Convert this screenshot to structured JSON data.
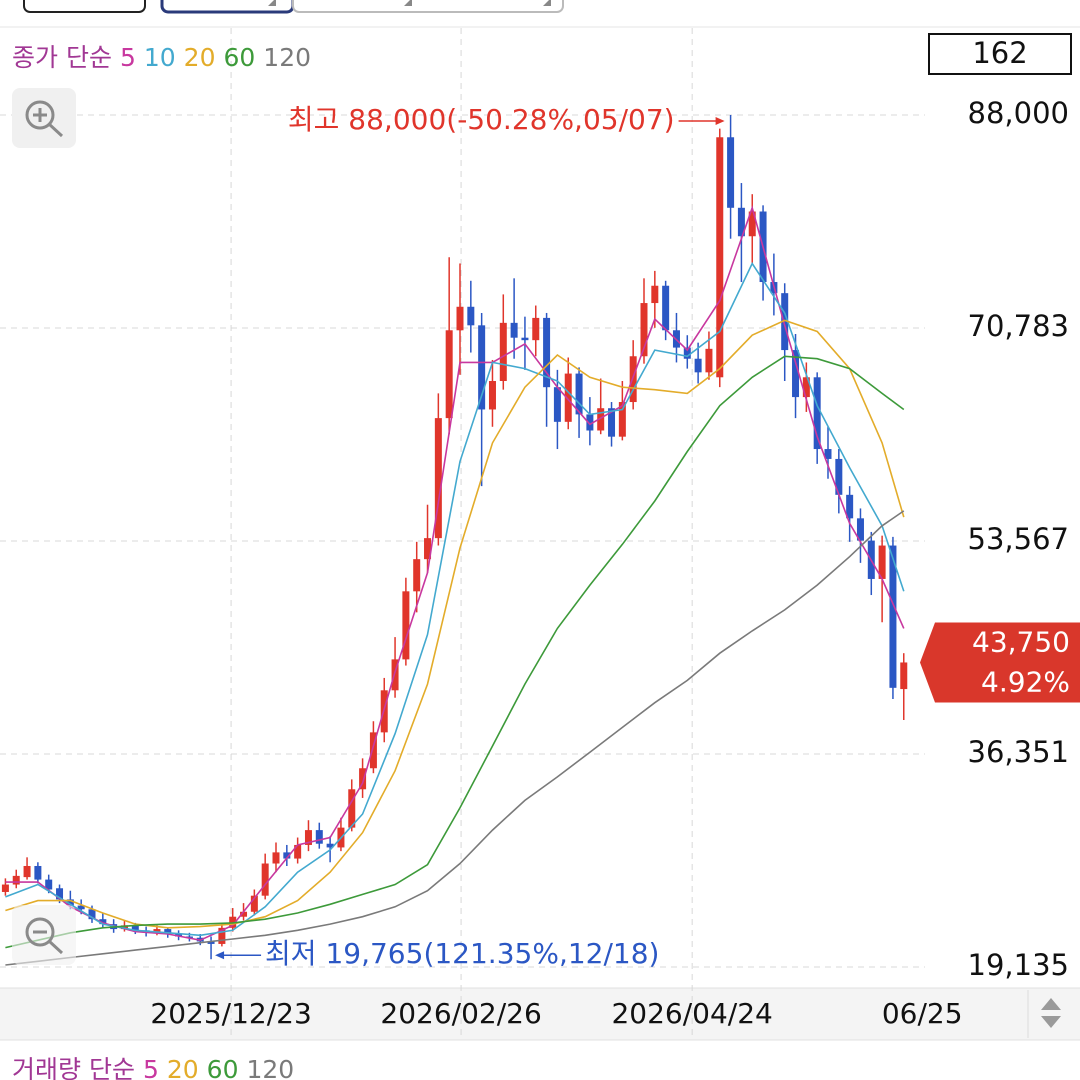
{
  "chart_data": {
    "type": "candlestick",
    "legend_label": "종가 단순",
    "count_label": "162",
    "high_annotation": "최고 88,000(-50.28%,05/07)",
    "low_annotation": "최저 19,765(121.35%,12/18)",
    "last_price_label": "43,750",
    "last_change_label": "4.92%",
    "up_color": "#e0352b",
    "down_color": "#2b57c4",
    "tag_color": "#d9372b",
    "xlim": [
      -0.5,
      84.5
    ],
    "ylim": [
      17438,
      95032
    ],
    "xticks": [
      {
        "value": 20.85,
        "label": "2025/12/23"
      },
      {
        "value": 42.1,
        "label": "2026/02/26"
      },
      {
        "value": 63.45,
        "label": "2026/04/24"
      },
      {
        "value": 84.7,
        "label": "06/25"
      }
    ],
    "yticks": [
      {
        "value": 19135,
        "label": "19,135"
      },
      {
        "value": 36351,
        "label": "36,351"
      },
      {
        "value": 53567,
        "label": "53,567"
      },
      {
        "value": 70783,
        "label": "70,783"
      },
      {
        "value": 88000,
        "label": "88,000"
      }
    ],
    "grid": true,
    "x": [
      0,
      1,
      2,
      3,
      4,
      5,
      6,
      7,
      8,
      9,
      10,
      11,
      12,
      13,
      14,
      15,
      16,
      17,
      18,
      19,
      20,
      21,
      22,
      23,
      24,
      25,
      26,
      27,
      28,
      29,
      30,
      31,
      32,
      33,
      34,
      35,
      36,
      37,
      38,
      39,
      40,
      41,
      42,
      43,
      44,
      45,
      46,
      47,
      48,
      49,
      50,
      51,
      52,
      53,
      54,
      55,
      56,
      57,
      58,
      59,
      60,
      61,
      62,
      63,
      64,
      65,
      66,
      67,
      68,
      69,
      70,
      71,
      72,
      73,
      74,
      75,
      76,
      77,
      78,
      79,
      80,
      81,
      82,
      83
    ],
    "candles": [
      [
        25200,
        26300,
        24900,
        25800
      ],
      [
        25800,
        27000,
        25500,
        26500
      ],
      [
        26400,
        28000,
        26200,
        27300
      ],
      [
        27300,
        27600,
        25900,
        26200
      ],
      [
        26200,
        26600,
        25100,
        25400
      ],
      [
        25500,
        25800,
        24300,
        24600
      ],
      [
        24600,
        25300,
        23800,
        24100
      ],
      [
        24100,
        24600,
        23400,
        23800
      ],
      [
        23800,
        24100,
        22700,
        23000
      ],
      [
        23000,
        23500,
        22300,
        22600
      ],
      [
        22600,
        23000,
        21900,
        22200
      ],
      [
        22200,
        22900,
        22000,
        22500
      ],
      [
        22500,
        22700,
        21800,
        22100
      ],
      [
        22100,
        22400,
        21600,
        21900
      ],
      [
        21900,
        22500,
        21700,
        22200
      ],
      [
        22200,
        22300,
        21500,
        21800
      ],
      [
        21800,
        22100,
        21300,
        21600
      ],
      [
        21600,
        21900,
        21200,
        21500
      ],
      [
        21500,
        21800,
        20900,
        21200
      ],
      [
        21200,
        21600,
        19765,
        21000
      ],
      [
        21000,
        22600,
        20800,
        22300
      ],
      [
        22300,
        23900,
        22000,
        23200
      ],
      [
        23200,
        24300,
        22900,
        23600
      ],
      [
        23600,
        25400,
        23300,
        24900
      ],
      [
        24900,
        28300,
        24600,
        27500
      ],
      [
        27500,
        29200,
        26800,
        28400
      ],
      [
        28400,
        29000,
        27300,
        27900
      ],
      [
        27900,
        29600,
        27500,
        29000
      ],
      [
        29000,
        31000,
        28500,
        30200
      ],
      [
        30200,
        30800,
        28700,
        29100
      ],
      [
        29100,
        29700,
        27600,
        28800
      ],
      [
        28800,
        31200,
        28500,
        30400
      ],
      [
        30400,
        34300,
        30100,
        33500
      ],
      [
        33500,
        36000,
        32800,
        35200
      ],
      [
        35200,
        39000,
        34800,
        38100
      ],
      [
        38100,
        42500,
        37300,
        41500
      ],
      [
        41500,
        45800,
        40900,
        44000
      ],
      [
        44000,
        50600,
        43500,
        49500
      ],
      [
        49500,
        53500,
        47800,
        52100
      ],
      [
        52100,
        56500,
        51000,
        53800
      ],
      [
        53800,
        65500,
        53200,
        63500
      ],
      [
        63500,
        76500,
        62200,
        70600
      ],
      [
        70600,
        76000,
        67000,
        72500
      ],
      [
        72500,
        74600,
        68800,
        71000
      ],
      [
        71000,
        72000,
        58000,
        64200
      ],
      [
        64200,
        68200,
        62800,
        66500
      ],
      [
        66500,
        73500,
        65800,
        71200
      ],
      [
        71200,
        74800,
        68300,
        70000
      ],
      [
        70000,
        71700,
        67400,
        69800
      ],
      [
        69800,
        72600,
        68500,
        71600
      ],
      [
        71600,
        72000,
        62800,
        66000
      ],
      [
        66000,
        67400,
        61000,
        63200
      ],
      [
        63200,
        68400,
        62600,
        67100
      ],
      [
        67100,
        67600,
        61900,
        63800
      ],
      [
        63800,
        65200,
        61300,
        62500
      ],
      [
        62500,
        66700,
        62200,
        64300
      ],
      [
        64300,
        64800,
        61200,
        62000
      ],
      [
        62000,
        66500,
        61700,
        64800
      ],
      [
        64800,
        69800,
        64200,
        68500
      ],
      [
        68500,
        74800,
        67900,
        72800
      ],
      [
        72800,
        75400,
        70800,
        74200
      ],
      [
        74200,
        74600,
        69800,
        70600
      ],
      [
        70600,
        72000,
        68000,
        69200
      ],
      [
        69200,
        70200,
        67500,
        68300
      ],
      [
        68300,
        69600,
        66300,
        67200
      ],
      [
        67200,
        70500,
        66600,
        69100
      ],
      [
        66800,
        86900,
        66000,
        86200
      ],
      [
        86200,
        88000,
        78000,
        80500
      ],
      [
        80500,
        82500,
        74500,
        78200
      ],
      [
        78200,
        81600,
        76000,
        80200
      ],
      [
        80200,
        80700,
        73000,
        74500
      ],
      [
        74500,
        76800,
        71800,
        73600
      ],
      [
        73600,
        74400,
        66500,
        69000
      ],
      [
        69000,
        70300,
        63500,
        65200
      ],
      [
        65200,
        68000,
        64000,
        66800
      ],
      [
        66800,
        67200,
        59800,
        61000
      ],
      [
        61000,
        62800,
        58600,
        60200
      ],
      [
        60200,
        61000,
        55800,
        57300
      ],
      [
        57300,
        58000,
        53500,
        55400
      ],
      [
        55400,
        56200,
        51800,
        53600
      ],
      [
        53600,
        54300,
        49200,
        50500
      ],
      [
        50500,
        54000,
        47000,
        53200
      ],
      [
        53200,
        53900,
        40800,
        41700
      ],
      [
        41600,
        44500,
        39100,
        43750
      ]
    ],
    "series": [
      {
        "name": "5",
        "color": "#c8389f",
        "x": [
          0,
          3,
          6,
          9,
          12,
          15,
          18,
          21,
          24,
          27,
          30,
          33,
          36,
          39,
          42,
          45,
          48,
          51,
          54,
          57,
          60,
          63,
          66,
          69,
          72,
          75,
          78,
          81,
          83
        ],
        "values": [
          26000,
          26000,
          24000,
          22700,
          22000,
          21800,
          21300,
          22500,
          25800,
          29000,
          29600,
          34000,
          43000,
          51000,
          68000,
          68000,
          69500,
          66000,
          63000,
          64500,
          71500,
          69000,
          73000,
          80500,
          71000,
          62000,
          55000,
          50500,
          46500
        ]
      },
      {
        "name": "10",
        "color": "#43a9cf",
        "x": [
          0,
          3,
          6,
          9,
          12,
          15,
          18,
          21,
          24,
          27,
          30,
          33,
          36,
          39,
          42,
          45,
          48,
          51,
          54,
          57,
          60,
          63,
          66,
          69,
          72,
          75,
          78,
          81,
          83
        ],
        "values": [
          24800,
          25800,
          24200,
          22600,
          22100,
          21900,
          21700,
          22100,
          24000,
          26800,
          28600,
          31500,
          38000,
          46000,
          60000,
          68000,
          67500,
          66500,
          63800,
          64200,
          69000,
          68500,
          70500,
          76000,
          72000,
          64500,
          59500,
          54800,
          49500
        ]
      },
      {
        "name": "20",
        "color": "#e3ac2a",
        "x": [
          0,
          3,
          6,
          9,
          12,
          15,
          18,
          21,
          24,
          27,
          30,
          33,
          36,
          39,
          42,
          45,
          48,
          51,
          54,
          57,
          60,
          63,
          66,
          69,
          72,
          75,
          78,
          81,
          83
        ],
        "values": [
          23700,
          24500,
          24500,
          23500,
          22600,
          22300,
          22400,
          22600,
          23200,
          24500,
          26800,
          30000,
          35000,
          42000,
          53000,
          61500,
          66000,
          68600,
          66800,
          66000,
          65800,
          65500,
          67500,
          70200,
          71400,
          70500,
          67500,
          61500,
          55500
        ]
      },
      {
        "name": "60",
        "color": "#3d9a3a",
        "x": [
          0,
          3,
          6,
          9,
          12,
          15,
          18,
          21,
          24,
          27,
          30,
          33,
          36,
          39,
          42,
          45,
          48,
          51,
          54,
          57,
          60,
          63,
          66,
          69,
          72,
          75,
          78,
          81,
          83
        ],
        "values": [
          20700,
          21300,
          21900,
          22300,
          22500,
          22600,
          22600,
          22700,
          23000,
          23500,
          24200,
          25000,
          25800,
          27400,
          32000,
          37000,
          42000,
          46500,
          50000,
          53300,
          56800,
          60800,
          64500,
          66800,
          68500,
          68300,
          67500,
          65500,
          64200
        ]
      },
      {
        "name": "120",
        "color": "#7a7a7a",
        "x": [
          0,
          3,
          6,
          9,
          12,
          15,
          18,
          21,
          24,
          27,
          30,
          33,
          36,
          39,
          42,
          45,
          48,
          51,
          54,
          57,
          60,
          63,
          66,
          69,
          72,
          75,
          78,
          81,
          83
        ],
        "values": [
          19300,
          19600,
          19900,
          20200,
          20500,
          20800,
          21100,
          21400,
          21700,
          22100,
          22600,
          23200,
          24000,
          25300,
          27500,
          30200,
          32600,
          34500,
          36500,
          38500,
          40500,
          42300,
          44500,
          46300,
          48000,
          50000,
          52300,
          54800,
          56000
        ]
      }
    ],
    "volume_legend": {
      "label": "거래량 단순",
      "items": [
        {
          "name": "5",
          "color": "#c8389f"
        },
        {
          "name": "20",
          "color": "#e3ac2a"
        },
        {
          "name": "60",
          "color": "#3d9a3a"
        },
        {
          "name": "120",
          "color": "#7a7a7a"
        }
      ]
    }
  }
}
